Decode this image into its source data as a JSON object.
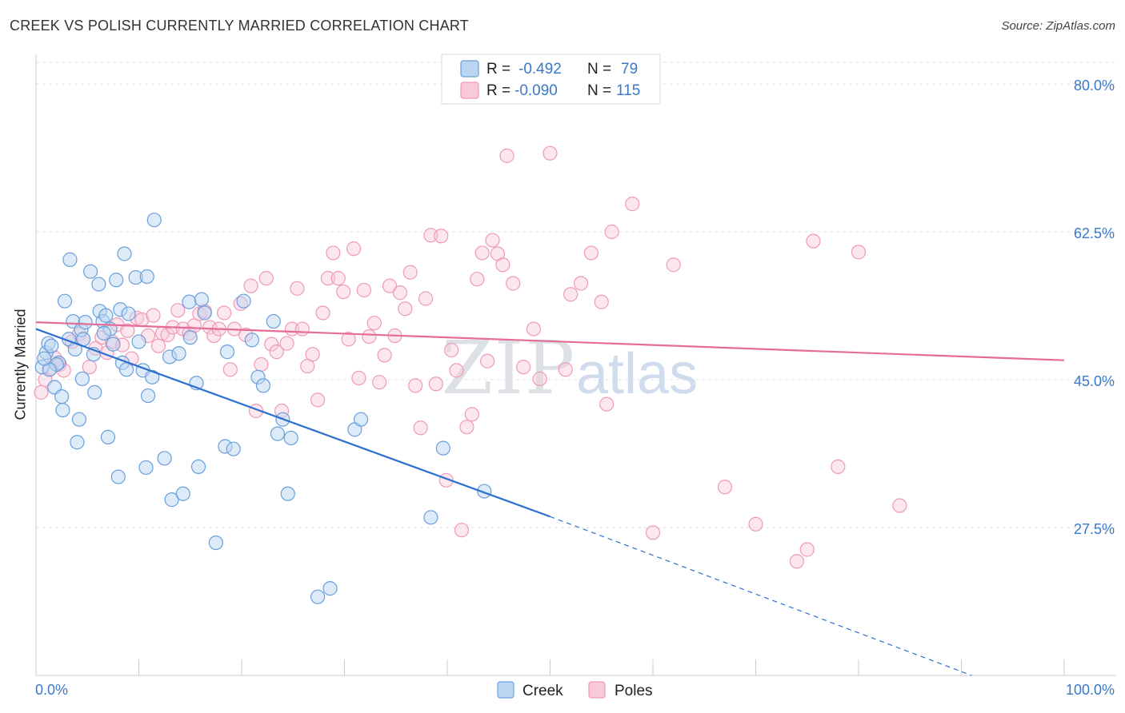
{
  "title": "CREEK VS POLISH CURRENTLY MARRIED CORRELATION CHART",
  "source": "Source: ZipAtlas.com",
  "watermark": {
    "zip": "ZIP",
    "atlas": "atlas"
  },
  "legend": {
    "rows": [
      {
        "r_label": "R =",
        "r_value": "-0.492",
        "n_label": "N =",
        "n_value": "79"
      },
      {
        "r_label": "R =",
        "r_value": "-0.090",
        "n_label": "N =",
        "n_value": "115"
      }
    ]
  },
  "bottom_legend": {
    "creek": "Creek",
    "poles": "Poles"
  },
  "chart_data": {
    "type": "scatter",
    "title": "CREEK VS POLISH CURRENTLY MARRIED CORRELATION CHART",
    "xlabel": "",
    "ylabel": "Currently Married",
    "xlim": [
      0,
      100
    ],
    "ylim": [
      10.0,
      83.5
    ],
    "x_tick_labels": [
      "0.0%",
      "100.0%"
    ],
    "y_ticks": [
      27.5,
      45.0,
      62.5,
      80.0
    ],
    "y_tick_labels": [
      "27.5%",
      "45.0%",
      "62.5%",
      "80.0%"
    ],
    "grid": true,
    "legend_position": "top-center",
    "colors": {
      "creek": "#6a9fdc",
      "creek_line": "#2b6fcf",
      "poles": "#ee9ab6",
      "poles_line": "#e46c96",
      "accent_text": "#3a78c9"
    },
    "series": [
      {
        "name": "Creek",
        "r": -0.492,
        "n": 79,
        "trend": {
          "x0": 0,
          "y0": 51.0,
          "x1": 50,
          "y1": 28.8,
          "dashed_to_x": 91,
          "dashed_to_y": 10.0
        },
        "points": [
          [
            0.6,
            46.5
          ],
          [
            1.0,
            48.2
          ],
          [
            1.2,
            49.3
          ],
          [
            1.8,
            44.1
          ],
          [
            2.2,
            47.0
          ],
          [
            2.5,
            43.0
          ],
          [
            2.6,
            41.4
          ],
          [
            1.5,
            49.0
          ],
          [
            2.8,
            54.3
          ],
          [
            3.2,
            49.8
          ],
          [
            3.3,
            59.2
          ],
          [
            3.6,
            51.9
          ],
          [
            4.2,
            40.3
          ],
          [
            4.4,
            50.9
          ],
          [
            4.5,
            45.1
          ],
          [
            4.6,
            49.8
          ],
          [
            4.8,
            51.8
          ],
          [
            5.3,
            57.8
          ],
          [
            5.6,
            48.0
          ],
          [
            5.7,
            43.5
          ],
          [
            6.1,
            56.3
          ],
          [
            6.2,
            53.1
          ],
          [
            6.5,
            51.9
          ],
          [
            6.8,
            52.6
          ],
          [
            7.0,
            38.2
          ],
          [
            7.2,
            51.0
          ],
          [
            7.5,
            49.2
          ],
          [
            7.8,
            56.8
          ],
          [
            8.0,
            33.5
          ],
          [
            8.2,
            53.3
          ],
          [
            8.4,
            47.0
          ],
          [
            8.6,
            59.9
          ],
          [
            8.8,
            46.2
          ],
          [
            9.0,
            52.8
          ],
          [
            9.7,
            57.1
          ],
          [
            10.0,
            49.5
          ],
          [
            10.4,
            46.1
          ],
          [
            10.7,
            34.6
          ],
          [
            10.8,
            57.2
          ],
          [
            10.9,
            43.1
          ],
          [
            11.3,
            45.3
          ],
          [
            11.5,
            63.9
          ],
          [
            12.5,
            35.7
          ],
          [
            13.0,
            47.7
          ],
          [
            13.2,
            30.8
          ],
          [
            13.9,
            48.1
          ],
          [
            14.3,
            31.5
          ],
          [
            14.9,
            54.2
          ],
          [
            15.6,
            44.6
          ],
          [
            15.8,
            34.7
          ],
          [
            16.1,
            54.5
          ],
          [
            16.4,
            52.9
          ],
          [
            17.5,
            25.7
          ],
          [
            18.4,
            37.1
          ],
          [
            18.6,
            48.3
          ],
          [
            19.2,
            36.8
          ],
          [
            20.2,
            54.3
          ],
          [
            21.0,
            49.7
          ],
          [
            21.6,
            45.3
          ],
          [
            22.1,
            44.3
          ],
          [
            23.1,
            51.9
          ],
          [
            23.5,
            38.6
          ],
          [
            24.0,
            40.3
          ],
          [
            24.5,
            31.5
          ],
          [
            24.8,
            38.1
          ],
          [
            27.4,
            19.3
          ],
          [
            28.6,
            20.3
          ],
          [
            31.0,
            39.1
          ],
          [
            31.6,
            40.3
          ],
          [
            38.4,
            28.7
          ],
          [
            39.6,
            36.9
          ],
          [
            43.6,
            31.8
          ],
          [
            4.0,
            37.6
          ],
          [
            2.0,
            46.8
          ],
          [
            1.3,
            46.2
          ],
          [
            0.8,
            47.5
          ],
          [
            3.8,
            48.6
          ],
          [
            6.6,
            50.5
          ],
          [
            15.0,
            50.0
          ]
        ]
      },
      {
        "name": "Poles",
        "r": -0.09,
        "n": 115,
        "trend": {
          "x0": 0,
          "y0": 51.8,
          "x1": 100,
          "y1": 47.3
        },
        "points": [
          [
            0.5,
            43.5
          ],
          [
            0.9,
            45.0
          ],
          [
            1.4,
            46.3
          ],
          [
            1.8,
            47.6
          ],
          [
            2.3,
            46.8
          ],
          [
            2.7,
            46.1
          ],
          [
            3.5,
            49.5
          ],
          [
            4.2,
            50.4
          ],
          [
            4.6,
            49.8
          ],
          [
            5.2,
            46.5
          ],
          [
            5.8,
            48.7
          ],
          [
            6.4,
            50.0
          ],
          [
            6.9,
            48.2
          ],
          [
            7.4,
            49.5
          ],
          [
            7.9,
            51.5
          ],
          [
            8.4,
            49.1
          ],
          [
            8.9,
            50.8
          ],
          [
            9.3,
            47.5
          ],
          [
            9.8,
            52.3
          ],
          [
            10.3,
            52.1
          ],
          [
            10.9,
            50.2
          ],
          [
            11.4,
            52.6
          ],
          [
            11.9,
            49.0
          ],
          [
            12.3,
            50.5
          ],
          [
            12.8,
            50.3
          ],
          [
            13.3,
            51.2
          ],
          [
            13.8,
            53.2
          ],
          [
            14.3,
            51.0
          ],
          [
            14.9,
            50.5
          ],
          [
            15.4,
            51.4
          ],
          [
            15.9,
            52.8
          ],
          [
            16.4,
            53.1
          ],
          [
            16.9,
            51.2
          ],
          [
            17.3,
            50.2
          ],
          [
            17.8,
            51.0
          ],
          [
            18.3,
            52.9
          ],
          [
            18.9,
            46.2
          ],
          [
            19.3,
            51.0
          ],
          [
            19.9,
            54.0
          ],
          [
            20.4,
            50.3
          ],
          [
            20.9,
            56.1
          ],
          [
            21.4,
            41.3
          ],
          [
            21.9,
            46.8
          ],
          [
            22.4,
            57.0
          ],
          [
            22.9,
            49.2
          ],
          [
            23.4,
            48.3
          ],
          [
            23.9,
            41.3
          ],
          [
            24.4,
            49.3
          ],
          [
            24.9,
            51.0
          ],
          [
            25.4,
            55.8
          ],
          [
            25.9,
            51.0
          ],
          [
            26.4,
            46.6
          ],
          [
            26.9,
            48.0
          ],
          [
            27.4,
            42.6
          ],
          [
            27.9,
            52.9
          ],
          [
            28.4,
            57.0
          ],
          [
            28.9,
            60.0
          ],
          [
            29.4,
            57.0
          ],
          [
            29.9,
            55.4
          ],
          [
            30.4,
            49.8
          ],
          [
            30.9,
            60.5
          ],
          [
            31.4,
            45.2
          ],
          [
            31.9,
            55.6
          ],
          [
            32.4,
            50.1
          ],
          [
            32.9,
            51.7
          ],
          [
            33.4,
            44.7
          ],
          [
            33.9,
            47.9
          ],
          [
            34.4,
            56.1
          ],
          [
            34.9,
            50.2
          ],
          [
            35.4,
            55.3
          ],
          [
            35.9,
            53.4
          ],
          [
            36.4,
            57.7
          ],
          [
            36.9,
            44.3
          ],
          [
            37.4,
            39.3
          ],
          [
            37.9,
            54.6
          ],
          [
            38.4,
            62.1
          ],
          [
            38.9,
            44.5
          ],
          [
            39.4,
            62.0
          ],
          [
            39.9,
            33.1
          ],
          [
            40.4,
            48.5
          ],
          [
            40.9,
            46.1
          ],
          [
            41.4,
            27.2
          ],
          [
            41.9,
            39.4
          ],
          [
            42.4,
            40.9
          ],
          [
            42.9,
            56.9
          ],
          [
            43.4,
            60.0
          ],
          [
            43.9,
            47.2
          ],
          [
            44.4,
            61.5
          ],
          [
            44.9,
            59.9
          ],
          [
            45.4,
            58.6
          ],
          [
            45.8,
            71.5
          ],
          [
            46.4,
            56.4
          ],
          [
            46.9,
            79.3
          ],
          [
            47.4,
            46.5
          ],
          [
            48.4,
            51.0
          ],
          [
            49.0,
            45.1
          ],
          [
            50.0,
            71.8
          ],
          [
            51.5,
            46.2
          ],
          [
            52.0,
            55.1
          ],
          [
            53.0,
            56.4
          ],
          [
            54.0,
            60.0
          ],
          [
            55.0,
            54.2
          ],
          [
            55.5,
            42.1
          ],
          [
            56.0,
            62.5
          ],
          [
            58.0,
            65.8
          ],
          [
            60.0,
            26.9
          ],
          [
            62.0,
            58.6
          ],
          [
            67.0,
            32.3
          ],
          [
            70.0,
            27.9
          ],
          [
            74.0,
            23.5
          ],
          [
            75.0,
            24.9
          ],
          [
            75.6,
            61.4
          ],
          [
            78.0,
            34.7
          ],
          [
            80.0,
            60.1
          ],
          [
            84.0,
            30.1
          ]
        ]
      }
    ]
  }
}
